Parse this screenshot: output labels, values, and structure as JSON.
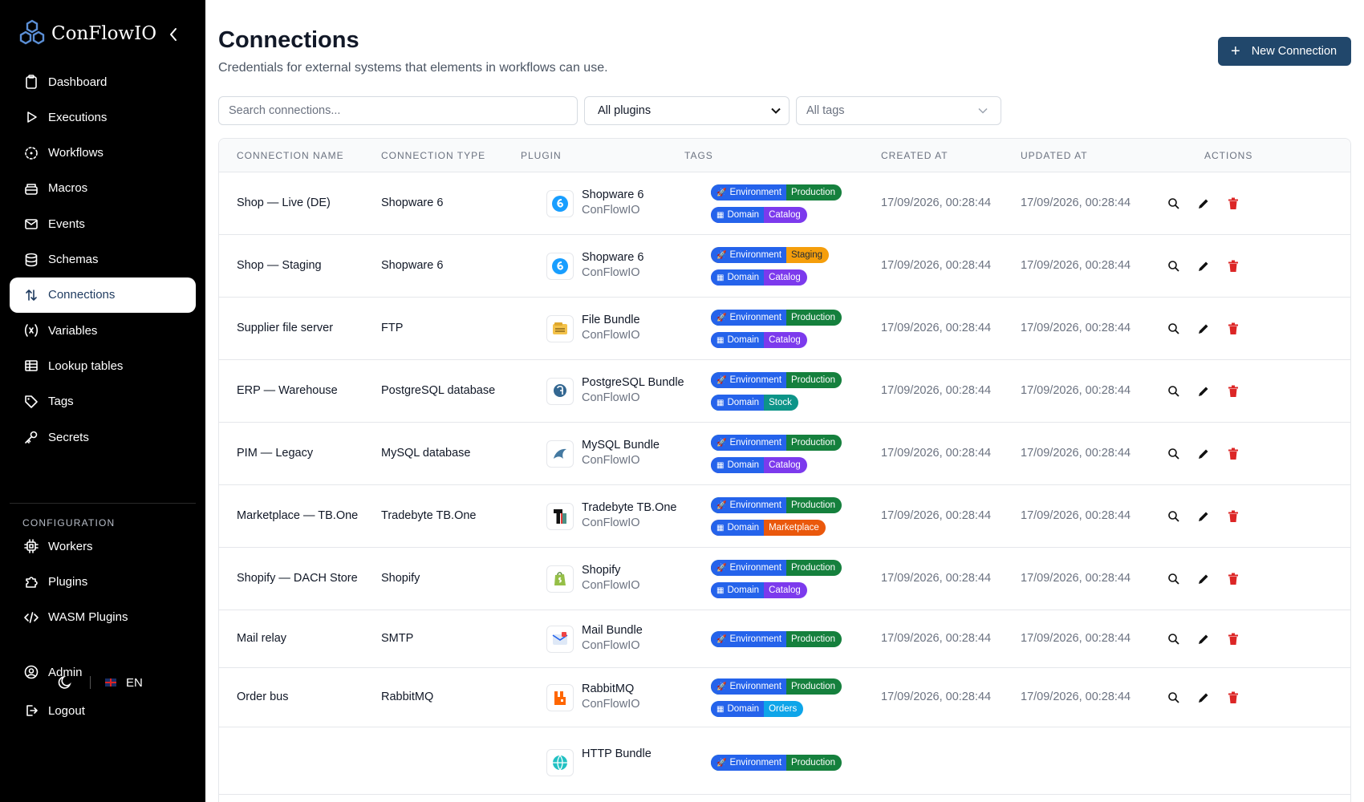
{
  "app": {
    "name": "ConFlowIO",
    "accent_color": "#21476b"
  },
  "sidebar": {
    "items": [
      {
        "label": "Dashboard",
        "icon": "clipboard-icon"
      },
      {
        "label": "Executions",
        "icon": "play-icon"
      },
      {
        "label": "Workflows",
        "icon": "workflow-icon"
      },
      {
        "label": "Macros",
        "icon": "stack-icon"
      },
      {
        "label": "Events",
        "icon": "envelope-icon"
      },
      {
        "label": "Schemas",
        "icon": "database-icon"
      },
      {
        "label": "Connections",
        "icon": "arrows-up-down-icon",
        "active": true
      },
      {
        "label": "Variables",
        "icon": "variable-icon"
      },
      {
        "label": "Lookup tables",
        "icon": "table-icon"
      },
      {
        "label": "Tags",
        "icon": "tag-icon"
      },
      {
        "label": "Secrets",
        "icon": "key-icon"
      }
    ],
    "configuration_label": "CONFIGURATION",
    "config_items": [
      {
        "label": "Workers",
        "icon": "chip-icon"
      },
      {
        "label": "Plugins",
        "icon": "puzzle-icon"
      },
      {
        "label": "WASM Plugins",
        "icon": "code-icon"
      }
    ],
    "language": "EN",
    "bottom_items": [
      {
        "label": "Admin",
        "icon": "user-circle-icon"
      },
      {
        "label": "Logout",
        "icon": "logout-icon"
      }
    ]
  },
  "header": {
    "title": "Connections",
    "subtitle": "Credentials for external systems that elements in workflows can use.",
    "new_button": "New Connection"
  },
  "filters": {
    "search_placeholder": "Search connections...",
    "plugin_selected": "All plugins",
    "tags_placeholder": "All tags"
  },
  "table": {
    "columns": [
      "CONNECTION NAME",
      "CONNECTION TYPE",
      "PLUGIN",
      "TAGS",
      "CREATED AT",
      "UPDATED AT",
      "ACTIONS"
    ],
    "rows": [
      {
        "name": "Shop — Live (DE)",
        "type": "Shopware 6",
        "plugin": "Shopware 6",
        "vendor": "ConFlowIO",
        "plugin_icon": "shopware-icon",
        "tags": [
          {
            "key": "Environment",
            "value": "Production",
            "color": "#15803d"
          },
          {
            "key": "Domain",
            "value": "Catalog",
            "color": "#7c3aed"
          }
        ],
        "created": "17/09/2026, 00:28:44",
        "updated": "17/09/2026, 00:28:44"
      },
      {
        "name": "Shop — Staging",
        "type": "Shopware 6",
        "plugin": "Shopware 6",
        "vendor": "ConFlowIO",
        "plugin_icon": "shopware-icon",
        "tags": [
          {
            "key": "Environment",
            "value": "Staging",
            "color": "#f59e0b"
          },
          {
            "key": "Domain",
            "value": "Catalog",
            "color": "#7c3aed"
          }
        ],
        "created": "17/09/2026, 00:28:44",
        "updated": "17/09/2026, 00:28:44"
      },
      {
        "name": "Supplier file server",
        "type": "FTP",
        "plugin": "File Bundle",
        "vendor": "ConFlowIO",
        "plugin_icon": "file-bundle-icon",
        "tags": [
          {
            "key": "Environment",
            "value": "Production",
            "color": "#15803d"
          },
          {
            "key": "Domain",
            "value": "Catalog",
            "color": "#7c3aed"
          }
        ],
        "created": "17/09/2026, 00:28:44",
        "updated": "17/09/2026, 00:28:44"
      },
      {
        "name": "ERP — Warehouse",
        "type": "PostgreSQL database",
        "plugin": "PostgreSQL Bundle",
        "vendor": "ConFlowIO",
        "plugin_icon": "postgresql-icon",
        "tags": [
          {
            "key": "Environment",
            "value": "Production",
            "color": "#15803d"
          },
          {
            "key": "Domain",
            "value": "Stock",
            "color": "#0d9488"
          }
        ],
        "created": "17/09/2026, 00:28:44",
        "updated": "17/09/2026, 00:28:44"
      },
      {
        "name": "PIM — Legacy",
        "type": "MySQL database",
        "plugin": "MySQL Bundle",
        "vendor": "ConFlowIO",
        "plugin_icon": "mysql-icon",
        "tags": [
          {
            "key": "Environment",
            "value": "Production",
            "color": "#15803d"
          },
          {
            "key": "Domain",
            "value": "Catalog",
            "color": "#7c3aed"
          }
        ],
        "created": "17/09/2026, 00:28:44",
        "updated": "17/09/2026, 00:28:44"
      },
      {
        "name": "Marketplace — TB.One",
        "type": "Tradebyte TB.One",
        "plugin": "Tradebyte TB.One",
        "vendor": "ConFlowIO",
        "plugin_icon": "tradebyte-icon",
        "tags": [
          {
            "key": "Environment",
            "value": "Production",
            "color": "#15803d"
          },
          {
            "key": "Domain",
            "value": "Marketplace",
            "color": "#ea580c"
          }
        ],
        "created": "17/09/2026, 00:28:44",
        "updated": "17/09/2026, 00:28:44"
      },
      {
        "name": "Shopify — DACH Store",
        "type": "Shopify",
        "plugin": "Shopify",
        "vendor": "ConFlowIO",
        "plugin_icon": "shopify-icon",
        "tags": [
          {
            "key": "Environment",
            "value": "Production",
            "color": "#15803d"
          },
          {
            "key": "Domain",
            "value": "Catalog",
            "color": "#7c3aed"
          }
        ],
        "created": "17/09/2026, 00:28:44",
        "updated": "17/09/2026, 00:28:44"
      },
      {
        "name": "Mail relay",
        "type": "SMTP",
        "plugin": "Mail Bundle",
        "vendor": "ConFlowIO",
        "plugin_icon": "mail-bundle-icon",
        "tags": [
          {
            "key": "Environment",
            "value": "Production",
            "color": "#15803d"
          }
        ],
        "created": "17/09/2026, 00:28:44",
        "updated": "17/09/2026, 00:28:44"
      },
      {
        "name": "Order bus",
        "type": "RabbitMQ",
        "plugin": "RabbitMQ",
        "vendor": "ConFlowIO",
        "plugin_icon": "rabbitmq-icon",
        "tags": [
          {
            "key": "Environment",
            "value": "Production",
            "color": "#15803d"
          },
          {
            "key": "Domain",
            "value": "Orders",
            "color": "#0ea5e9"
          }
        ],
        "created": "17/09/2026, 00:28:44",
        "updated": "17/09/2026, 00:28:44"
      },
      {
        "name": "",
        "type": "",
        "plugin": "HTTP Bundle",
        "vendor": "",
        "plugin_icon": "http-bundle-icon",
        "tags": [
          {
            "key": "Environment",
            "value": "Production",
            "color": "#15803d"
          }
        ],
        "created": "",
        "updated": ""
      }
    ]
  },
  "colors": {
    "tag_key_bg": "#2563eb",
    "delete": "#dc2626"
  }
}
